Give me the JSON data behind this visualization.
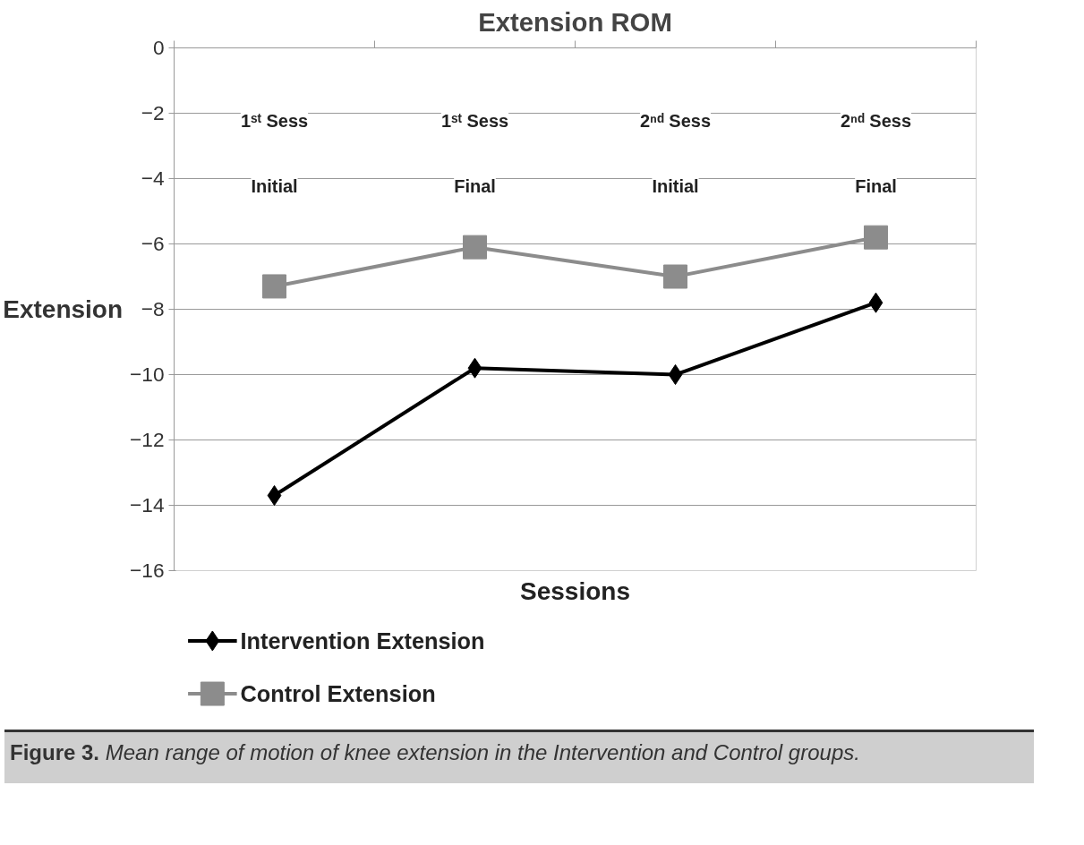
{
  "chart_data": {
    "type": "line",
    "title": "Extension ROM",
    "xlabel": "Sessions",
    "ylabel": "Extension",
    "categories": [
      "1ˢᵗ Sess\nInitial",
      "1ˢᵗ Sess\nFinal",
      "2ⁿᵈ Sess\nInitial",
      "2ⁿᵈ Sess\nFinal"
    ],
    "series": [
      {
        "name": "Intervention Extension",
        "color": "#000000",
        "marker": "diamond",
        "values": [
          -13.7,
          -9.8,
          -10.0,
          -7.8
        ]
      },
      {
        "name": "Control Extension",
        "color": "#8c8c8c",
        "marker": "square",
        "values": [
          -7.3,
          -6.1,
          -7.0,
          -5.8
        ]
      }
    ],
    "ylim": [
      -16,
      0
    ],
    "yticks": [
      0,
      -2,
      -4,
      -6,
      -8,
      -10,
      -12,
      -14,
      -16
    ],
    "grid": "y",
    "legend": "bottom left",
    "annotations": [
      "Figure 3. Mean range of motion of knee extension in the Intervention and Control groups."
    ]
  }
}
